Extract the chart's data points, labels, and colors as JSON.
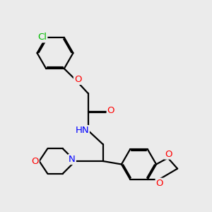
{
  "background_color": "#ebebeb",
  "atom_color_N": "#0000ff",
  "atom_color_O": "#ff0000",
  "atom_color_Cl": "#00bb00",
  "bond_width": 1.6,
  "dbo": 0.055,
  "font_size": 9.5,
  "xlim": [
    0,
    10
  ],
  "ylim": [
    0,
    10
  ]
}
